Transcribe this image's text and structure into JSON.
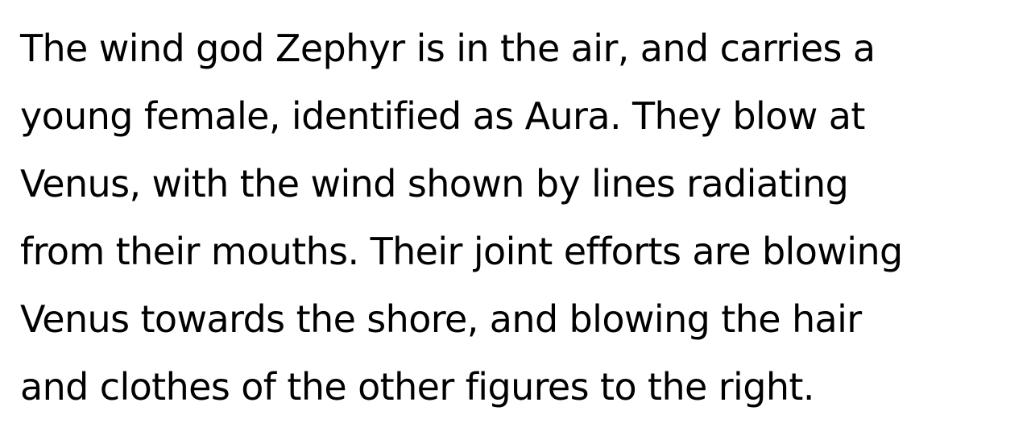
{
  "article": {
    "lines": [
      "The wind god Zephyr is in the air, and carries a",
      "young female, identified as Aura. They blow at",
      "Venus, with the wind shown by lines radiating",
      "from their mouths. Their joint efforts are blowing",
      "Venus towards the shore, and blowing the hair",
      "and clothes of the other figures to the right."
    ]
  }
}
